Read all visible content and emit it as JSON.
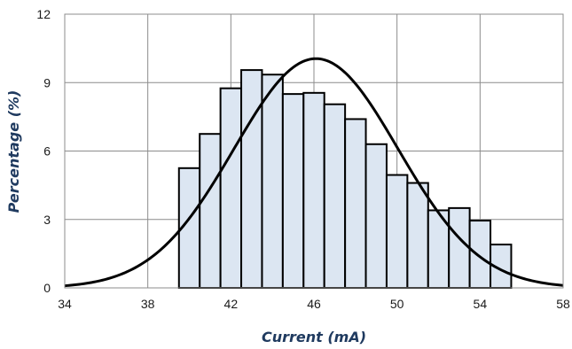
{
  "chart_data": {
    "type": "bar",
    "title": "",
    "xlabel": "Current (mA)",
    "ylabel": "Percentage (%)",
    "xlim": [
      34,
      58
    ],
    "ylim": [
      0,
      12
    ],
    "x_ticks": [
      34,
      38,
      42,
      46,
      50,
      54,
      58
    ],
    "y_ticks": [
      0,
      3,
      6,
      9,
      12
    ],
    "grid": true,
    "legend": "none",
    "series": [
      {
        "type": "histogram",
        "bin_width": 1,
        "bin_starts": [
          39.5,
          40.5,
          41.5,
          42.5,
          43.5,
          44.5,
          45.5,
          46.5,
          47.5,
          48.5,
          49.5,
          50.5,
          51.5,
          52.5,
          53.5,
          54.5
        ],
        "values": [
          5.25,
          6.75,
          8.75,
          9.55,
          9.35,
          8.5,
          8.55,
          8.05,
          7.4,
          6.3,
          4.95,
          4.6,
          3.4,
          3.5,
          2.95,
          1.9
        ]
      },
      {
        "type": "normal_curve",
        "mean": 46.1,
        "std": 3.95,
        "peak": 10.05
      }
    ],
    "colors": {
      "bar_fill": "#dce6f2",
      "bar_stroke": "#000000",
      "curve": "#000000",
      "grid": "#8c8c8c"
    }
  }
}
